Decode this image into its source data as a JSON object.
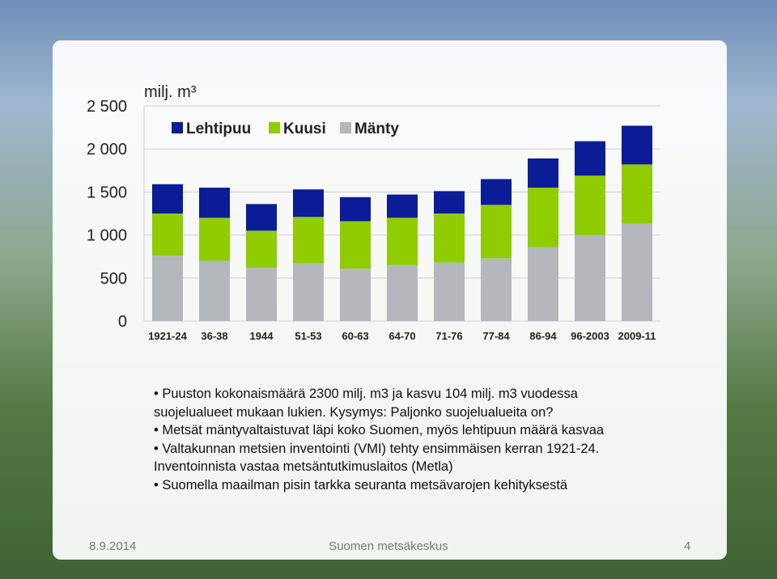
{
  "chart_data": {
    "type": "stacked_bar",
    "unit_label": "milj. m³",
    "categories": [
      "1921-24",
      "36-38",
      "1944",
      "51-53",
      "60-63",
      "64-70",
      "71-76",
      "77-84",
      "86-94",
      "96-2003",
      "2009-11"
    ],
    "series": [
      {
        "name": "Lehtipuu",
        "color": "#0b1c96",
        "values": [
          340,
          350,
          310,
          320,
          280,
          270,
          260,
          300,
          340,
          400,
          450
        ]
      },
      {
        "name": "Kuusi",
        "color": "#8fcc00",
        "values": [
          490,
          500,
          430,
          540,
          550,
          550,
          570,
          620,
          690,
          690,
          690
        ]
      },
      {
        "name": "Mänty",
        "color": "#b4b8bd",
        "values": [
          760,
          700,
          620,
          670,
          610,
          650,
          680,
          730,
          860,
          1000,
          1130
        ]
      }
    ],
    "stack_order": "bottom-to-top-reversed",
    "ylim": [
      0,
      2500
    ],
    "yticks": [
      0,
      500,
      {
        "value": 1000,
        "label": "1 000"
      },
      {
        "value": 1500,
        "label": "1 500"
      },
      {
        "value": 2000,
        "label": "2 000"
      },
      {
        "value": 2500,
        "label": "2 500"
      }
    ],
    "grid": true
  },
  "bullets": [
    "Puuston kokonaismäärä 2300 milj. m3 ja kasvu 104 milj. m3 vuodessa suojelualueet mukaan lukien. Kysymys: Paljonko suojelualueita on?",
    "Metsät mäntyvaltaistuvat läpi koko Suomen, myös lehtipuun määrä kasvaa",
    "Valtakunnan metsien inventointi (VMI) tehty ensimmäisen kerran 1921-24. Inventoinnista vastaa metsäntutkimuslaitos (Metla)",
    "Suomella maailman pisin tarkka seuranta metsävarojen kehityksestä"
  ],
  "footer": {
    "date": "8.9.2014",
    "organization": "Suomen metsäkeskus",
    "page": "4"
  }
}
